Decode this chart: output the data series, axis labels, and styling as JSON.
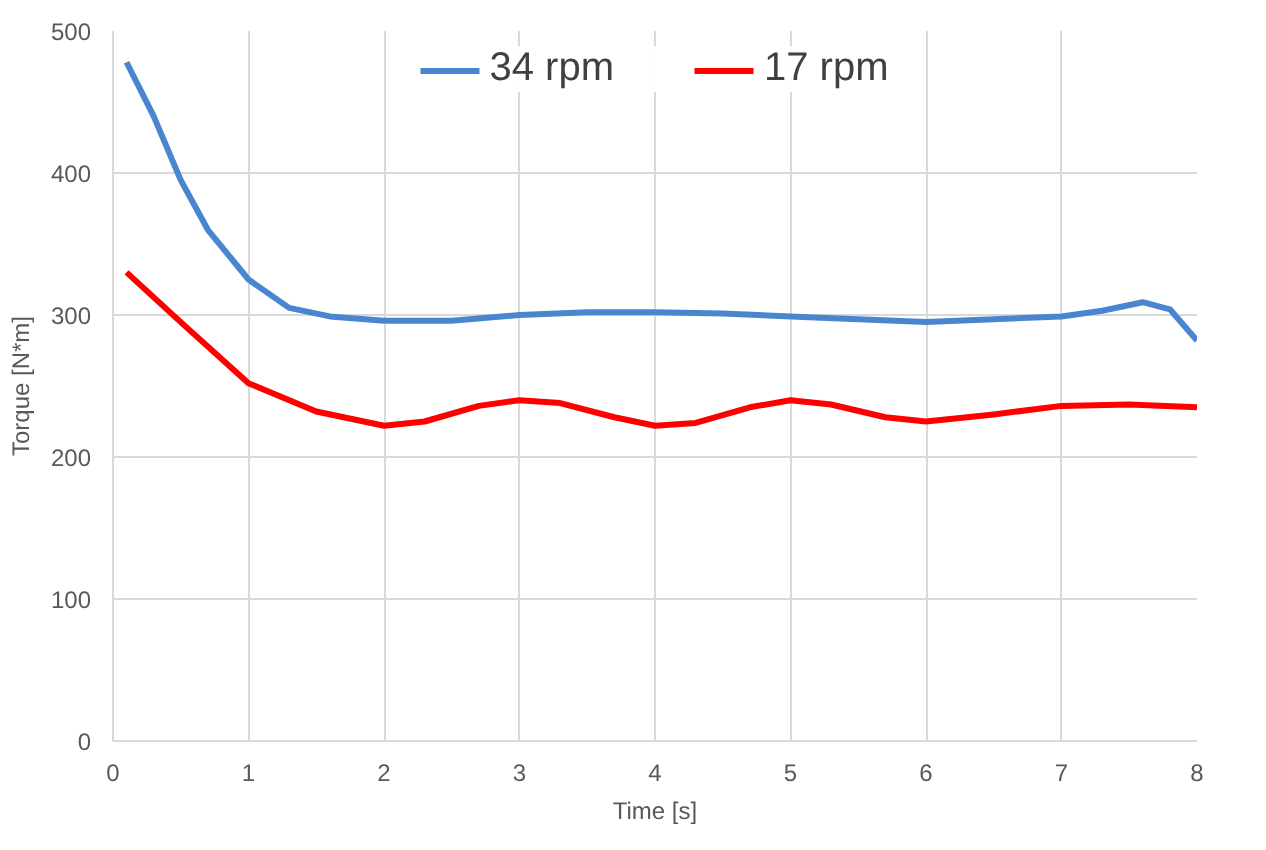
{
  "chart_data": {
    "type": "line",
    "xlabel": "Time [s]",
    "ylabel": "Torque [N*m]",
    "xlim": [
      0,
      8
    ],
    "xticks": [
      0,
      1,
      2,
      3,
      4,
      5,
      6,
      7,
      8
    ],
    "ylim": [
      0,
      500
    ],
    "yticks": [
      0,
      100,
      200,
      300,
      400,
      500
    ],
    "grid": true,
    "legend": "top",
    "marker": "none",
    "line_style": "solid",
    "series": [
      {
        "name": "34 rpm",
        "color": "#4a86d0",
        "x": [
          0.1,
          0.3,
          0.5,
          0.7,
          1,
          1.3,
          1.6,
          2,
          2.5,
          3,
          3.5,
          4,
          4.5,
          5,
          5.5,
          6,
          6.5,
          7,
          7.3,
          7.6,
          7.8,
          8
        ],
        "values": [
          478,
          440,
          395,
          360,
          325,
          305,
          299,
          296,
          296,
          300,
          302,
          302,
          301,
          299,
          297,
          295,
          297,
          299,
          303,
          309,
          304,
          282
        ]
      },
      {
        "name": "17 rpm",
        "color": "#ff0000",
        "x": [
          0.1,
          0.5,
          1,
          1.5,
          2,
          2.3,
          2.7,
          3,
          3.3,
          3.7,
          4,
          4.3,
          4.7,
          5,
          5.3,
          5.7,
          6,
          6.5,
          7,
          7.5,
          8
        ],
        "values": [
          330,
          295,
          252,
          232,
          222,
          225,
          236,
          240,
          238,
          228,
          222,
          224,
          235,
          240,
          237,
          228,
          225,
          230,
          236,
          237,
          235
        ]
      }
    ]
  }
}
